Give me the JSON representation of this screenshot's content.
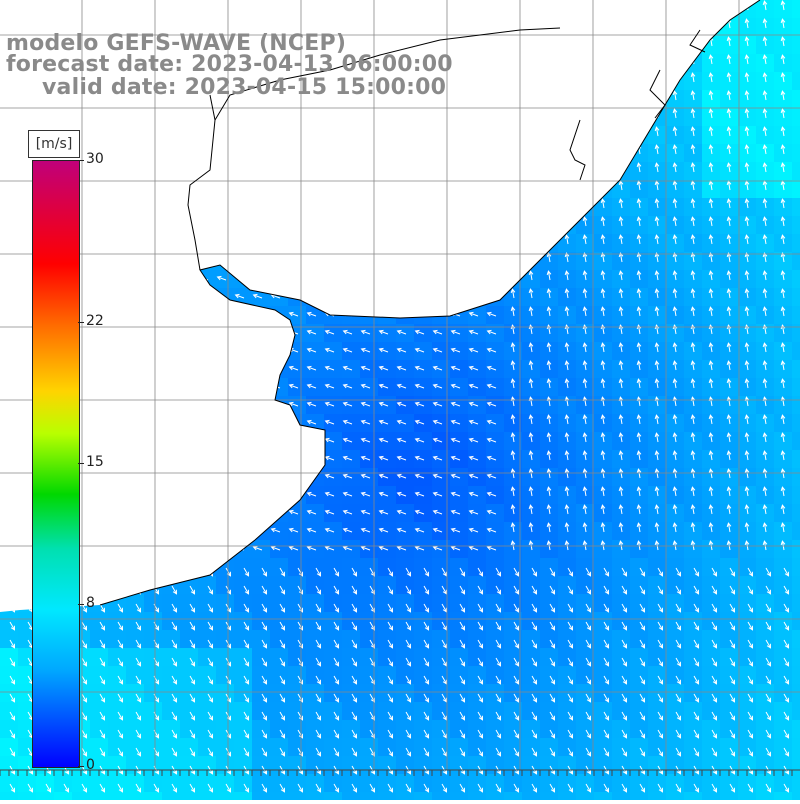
{
  "title": {
    "line1": "modelo GEFS-WAVE (NCEP)",
    "line2": "forecast date: 2023-04-13 06:00:00",
    "line3": "valid date: 2023-04-15 15:00:00"
  },
  "colorbar": {
    "units": "[m/s]",
    "ticks": [
      "30",
      "22",
      "15",
      "8",
      "0"
    ],
    "tick_values": [
      30,
      22,
      15,
      8,
      0
    ],
    "range": [
      0,
      30
    ],
    "colors": [
      "#0000ff",
      "#00a8ff",
      "#00e8ff",
      "#00e0b0",
      "#00d800",
      "#b8ff00",
      "#ffd400",
      "#ff6a00",
      "#ff0000",
      "#c0007a"
    ]
  },
  "map": {
    "land_color": "#ffffff",
    "grid_color": "#888888",
    "coast_color": "#000000",
    "arrow_color": "#ffffff",
    "field": "wind speed over ocean, vectors show direction"
  }
}
